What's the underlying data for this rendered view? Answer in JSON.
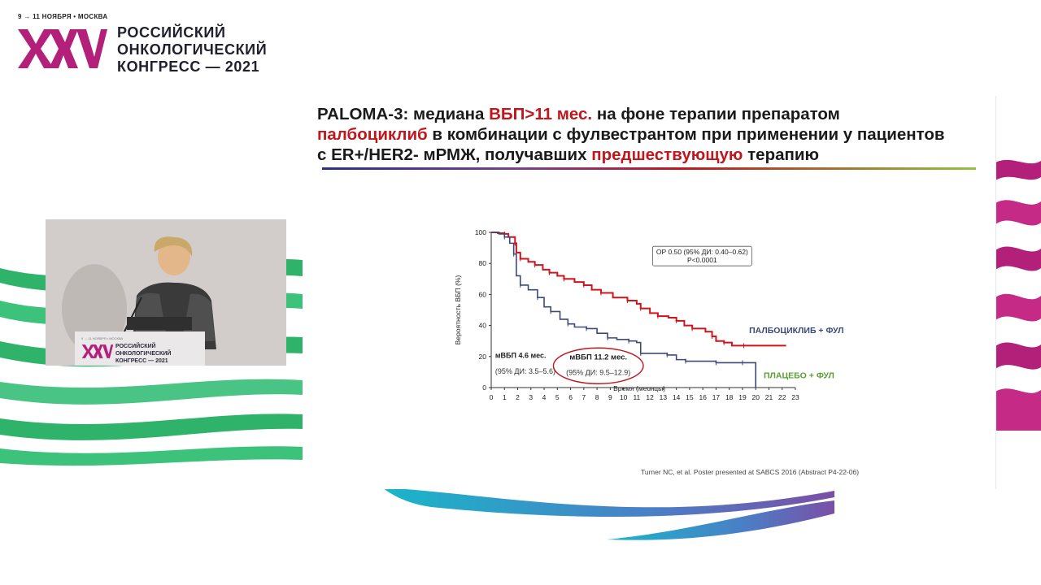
{
  "header": {
    "dates": "9 → 11 НОЯБРЯ • МОСКВА",
    "logo_text": "XXV",
    "title_lines": [
      "РОССИЙСКИЙ",
      "ОНКОЛОГИЧЕСКИЙ",
      "КОНГРЕСС — 2021"
    ]
  },
  "slide": {
    "title": {
      "line1_a": "PALOMA-3: медиана ",
      "line1_hl": "ВБП>11 мес.",
      "line1_b": " на фоне терапии препаратом",
      "line2_hl": "палбоциклиб",
      "line2_b": " в комбинации  с фулвестрантом при применении у пациентов",
      "line3_a": "с ER+/HER2- мРМЖ, получавших ",
      "line3_hl": "предшествующую",
      "line3_b": " терапию"
    },
    "citation": "Turner NC, et al. Poster presented at SABCS 2016 (Abstract P4-22-06)"
  },
  "podium": {
    "lines": [
      "РОССИЙСКИЙ",
      "ОНКОЛОГИЧЕСКИЙ",
      "КОНГРЕСС — 2021"
    ]
  },
  "colors": {
    "accent_red": "#c0161c",
    "placebo_navy": "#3c4a78",
    "placebo_label_green": "#5a9e2f",
    "logo_magenta": "#b3207a",
    "stripe_green": "#2fb36a"
  },
  "chart_data": {
    "type": "line",
    "title": "",
    "xlabel": "Время (месяцы)",
    "ylabel": "Вероятность ВБП (%)",
    "xlim": [
      0,
      23
    ],
    "ylim": [
      0,
      100
    ],
    "xticks": [
      0,
      1,
      2,
      3,
      4,
      5,
      6,
      7,
      8,
      9,
      10,
      11,
      12,
      13,
      14,
      15,
      16,
      17,
      18,
      19,
      20,
      21,
      22,
      23
    ],
    "yticks": [
      0,
      20,
      40,
      60,
      80,
      100
    ],
    "hazard_box": [
      "ОР 0.50 (95% ДИ: 0.40–0.62)",
      "P<0.0001"
    ],
    "series": [
      {
        "name": "ПАЛБОЦИКЛИБ + ФУЛ",
        "color": "#d0141b",
        "x": [
          0,
          0.5,
          1,
          1.3,
          1.8,
          1.9,
          2.2,
          2.8,
          3.3,
          3.9,
          4.4,
          5.0,
          5.5,
          6.3,
          7.0,
          7.6,
          8.3,
          9.2,
          10.3,
          11.0,
          11.3,
          12.0,
          12.6,
          13.4,
          14.0,
          14.6,
          15.2,
          16.2,
          16.7,
          17.0,
          17.6,
          18.2,
          19.1,
          20.0,
          22.3
        ],
        "y": [
          100,
          99.5,
          99,
          97,
          93,
          87,
          83,
          81,
          79,
          76,
          74,
          72,
          70,
          68,
          66,
          63,
          61,
          58,
          56,
          54,
          51,
          48,
          46,
          45,
          43,
          40,
          38,
          36,
          33,
          30,
          29,
          27,
          27,
          27,
          27
        ]
      },
      {
        "name": "ПЛАЦЕБО + ФУЛ",
        "color": "#3c4a78",
        "x": [
          0,
          0.6,
          1.0,
          1.4,
          1.7,
          1.9,
          2.2,
          2.8,
          3.5,
          4.0,
          4.5,
          5.2,
          5.8,
          6.3,
          7.2,
          8.0,
          8.8,
          9.5,
          10.4,
          11.0,
          11.3,
          12.5,
          13.3,
          14.0,
          14.7,
          16.0,
          17.0,
          18.0,
          19.0,
          20.0,
          20.0
        ],
        "y": [
          100,
          99,
          97,
          93,
          86,
          72,
          66,
          63,
          58,
          52,
          49,
          44,
          41,
          39,
          38,
          35,
          32,
          31,
          30,
          29,
          22,
          22,
          21,
          18,
          17,
          17,
          16,
          16,
          16,
          16,
          0
        ]
      }
    ],
    "annotations": [
      {
        "label": "мВБП 4.6 мес.",
        "sub": "(95% ДИ: 3.5–5.6)"
      },
      {
        "label": "мВБП 11.2 мес.",
        "sub": "(95% ДИ: 9.5–12.9)"
      }
    ]
  }
}
